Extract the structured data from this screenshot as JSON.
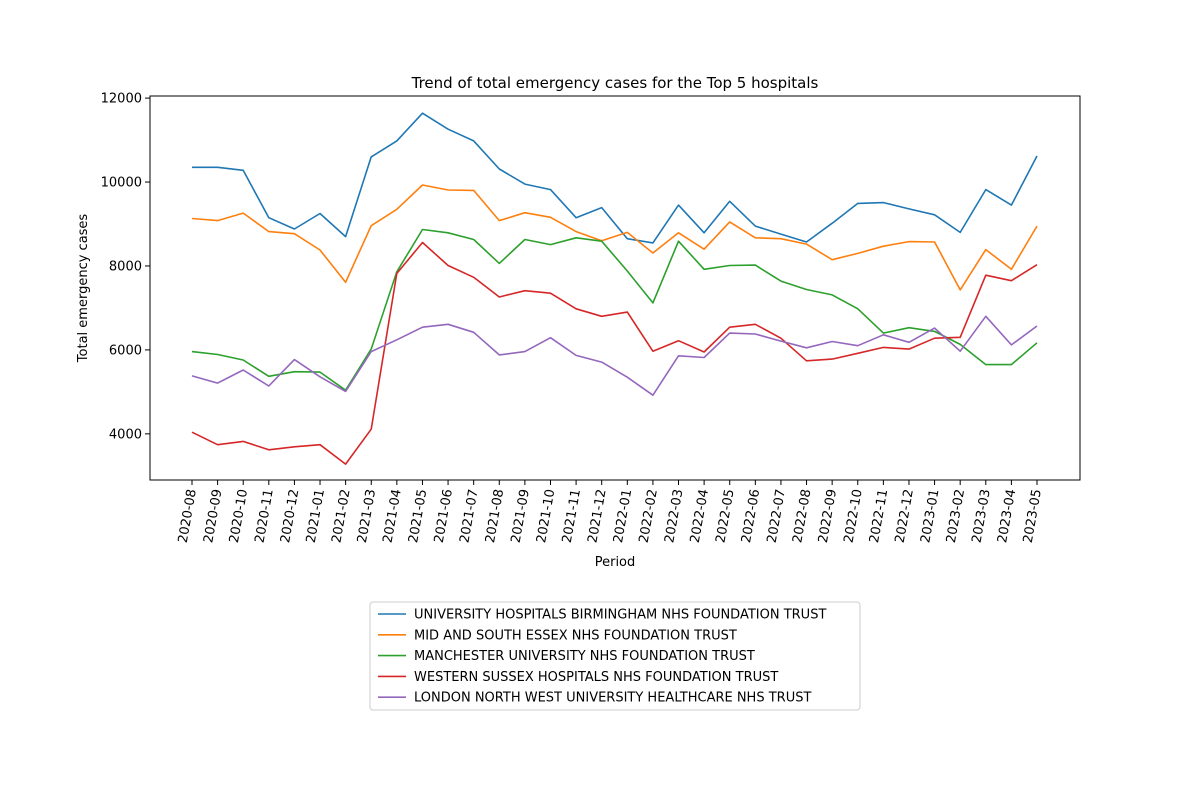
{
  "chart_data": {
    "type": "line",
    "title": "Trend of total emergency cases for the Top 5 hospitals",
    "xlabel": "Period",
    "ylabel": "Total emergency cases",
    "ylim": [
      2900,
      12050
    ],
    "yticks": [
      4000,
      6000,
      8000,
      10000,
      12000
    ],
    "grid": false,
    "legend_position": "bottom-center",
    "categories": [
      "2020-08",
      "2020-09",
      "2020-10",
      "2020-11",
      "2020-12",
      "2021-01",
      "2021-02",
      "2021-03",
      "2021-04",
      "2021-05",
      "2021-06",
      "2021-07",
      "2021-08",
      "2021-09",
      "2021-10",
      "2021-11",
      "2021-12",
      "2022-01",
      "2022-02",
      "2022-03",
      "2022-04",
      "2022-05",
      "2022-06",
      "2022-07",
      "2022-08",
      "2022-09",
      "2022-10",
      "2022-11",
      "2022-12",
      "2023-01",
      "2023-02",
      "2023-03",
      "2023-04",
      "2023-05"
    ],
    "series": [
      {
        "name": "UNIVERSITY HOSPITALS BIRMINGHAM NHS FOUNDATION TRUST",
        "color": "#1f77b4",
        "values": [
          10350,
          10350,
          10280,
          9150,
          8880,
          9250,
          8700,
          10600,
          10980,
          11640,
          11260,
          10980,
          10310,
          9950,
          9820,
          9150,
          9390,
          8650,
          8550,
          9450,
          8790,
          9540,
          8950,
          8760,
          8570,
          9020,
          9490,
          9510,
          9360,
          9220,
          8800,
          9820,
          9450,
          10620
        ]
      },
      {
        "name": "MID AND SOUTH ESSEX NHS FOUNDATION TRUST",
        "color": "#ff7f0e",
        "values": [
          9130,
          9080,
          9260,
          8820,
          8770,
          8380,
          7610,
          8960,
          9350,
          9930,
          9810,
          9800,
          9080,
          9270,
          9160,
          8820,
          8600,
          8800,
          8310,
          8790,
          8400,
          9050,
          8670,
          8650,
          8520,
          8150,
          8300,
          8470,
          8580,
          8570,
          7430,
          8390,
          7920,
          8950
        ]
      },
      {
        "name": "MANCHESTER UNIVERSITY NHS FOUNDATION TRUST",
        "color": "#2ca02c",
        "values": [
          5960,
          5890,
          5760,
          5370,
          5480,
          5470,
          5040,
          6020,
          7860,
          8870,
          8790,
          8630,
          8060,
          8630,
          8510,
          8670,
          8590,
          7880,
          7120,
          8590,
          7920,
          8010,
          8020,
          7640,
          7440,
          7310,
          6980,
          6400,
          6530,
          6440,
          6130,
          5650,
          5650,
          6170
        ]
      },
      {
        "name": "WESTERN SUSSEX HOSPITALS NHS FOUNDATION TRUST",
        "color": "#d62728",
        "values": [
          4040,
          3740,
          3820,
          3620,
          3690,
          3740,
          3280,
          4110,
          7820,
          8560,
          8010,
          7730,
          7260,
          7410,
          7350,
          6980,
          6800,
          6900,
          5970,
          6220,
          5950,
          6540,
          6610,
          6280,
          5740,
          5780,
          5920,
          6060,
          6020,
          6280,
          6300,
          7780,
          7650,
          8030
        ]
      },
      {
        "name": "LONDON NORTH WEST UNIVERSITY HEALTHCARE NHS TRUST",
        "color": "#9467bd",
        "values": [
          5380,
          5210,
          5520,
          5140,
          5770,
          5360,
          5010,
          5960,
          6240,
          6540,
          6610,
          6420,
          5880,
          5960,
          6290,
          5870,
          5710,
          5350,
          4920,
          5860,
          5820,
          6400,
          6380,
          6210,
          6050,
          6200,
          6100,
          6360,
          6180,
          6520,
          5970,
          6800,
          6120,
          6570
        ]
      }
    ]
  }
}
